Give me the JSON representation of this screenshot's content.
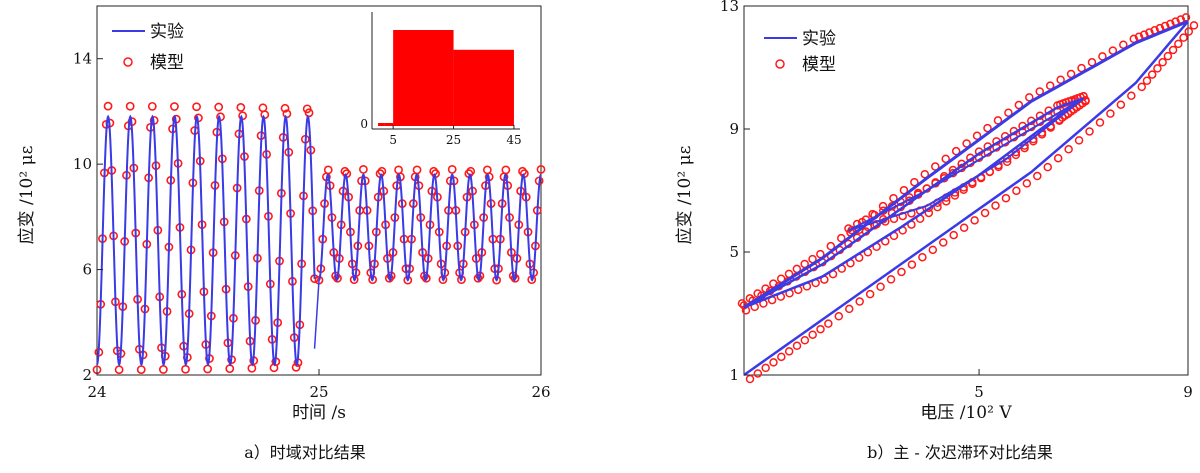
{
  "chart_data": [
    {
      "type": "line",
      "caption": "a）时域对比结果",
      "xlabel": "时间 /s",
      "ylabel": "应变 /10² με",
      "xlim": [
        24,
        26
      ],
      "ylim": [
        2,
        16
      ],
      "xticks": [
        "24",
        "25",
        "26"
      ],
      "yticks": [
        "2",
        "6",
        "10",
        "14"
      ],
      "legend": {
        "placement": "top-left",
        "entries": [
          "实验",
          "模型"
        ]
      },
      "series": [
        {
          "name": "实验",
          "style": "line",
          "color": "#3a3ae6",
          "segments": [
            {
              "x_start": 24.0,
              "x_end": 24.98,
              "frequency_hz": 10,
              "mean": 7.1,
              "amplitude": 4.7
            },
            {
              "x_start": 25.0,
              "x_end": 26.0,
              "frequency_hz": 12.5,
              "mean": 7.6,
              "amplitude": 2.0
            }
          ]
        },
        {
          "name": "模型",
          "style": "circle-markers",
          "color": "#ff1a1a",
          "segments": [
            {
              "x_start": 24.0,
              "x_end": 24.98,
              "frequency_hz": 10,
              "mean": 7.2,
              "amplitude": 5.0
            },
            {
              "x_start": 25.0,
              "x_end": 26.0,
              "frequency_hz": 12.5,
              "mean": 7.7,
              "amplitude": 2.1
            }
          ]
        }
      ],
      "inset": {
        "type": "area",
        "color": "#ff0000",
        "xticks": [
          "5",
          "25",
          "45"
        ],
        "yticks": [
          "0"
        ],
        "xlim": [
          -2,
          47
        ],
        "steps": [
          {
            "x_start": 0,
            "x_end": 2,
            "level": 0
          },
          {
            "x_start": 2,
            "x_end": 5,
            "level": 0.05
          },
          {
            "x_start": 5,
            "x_end": 25,
            "level": 1.0
          },
          {
            "x_start": 25,
            "x_end": 45,
            "level": 0.8
          }
        ],
        "band": [
          {
            "x_start": 5,
            "x_end": 25,
            "low": 0.2
          },
          {
            "x_start": 25,
            "x_end": 45,
            "low": 0.4
          }
        ]
      }
    },
    {
      "type": "line",
      "caption": "b）主 - 次迟滞环对比结果",
      "xlabel": "电压 /10² V",
      "ylabel": "应变 /10² με",
      "xlim": [
        0.5,
        9
      ],
      "ylim": [
        1,
        13
      ],
      "xticks": [
        "5",
        "9"
      ],
      "yticks": [
        "1",
        "5",
        "9",
        "13"
      ],
      "legend": {
        "placement": "top-right",
        "entries": [
          "实验",
          "模型"
        ]
      },
      "major_loop": {
        "v_min": 0.5,
        "v_max": 9,
        "upper_branch": [
          [
            0.5,
            3.2
          ],
          [
            2,
            4.8
          ],
          [
            4,
            7.4
          ],
          [
            6,
            9.9
          ],
          [
            8,
            11.8
          ],
          [
            9,
            12.5
          ]
        ],
        "lower_branch": [
          [
            0.5,
            1.0
          ],
          [
            2,
            2.8
          ],
          [
            4,
            5.2
          ],
          [
            6,
            7.6
          ],
          [
            8,
            10.5
          ],
          [
            9,
            12.5
          ]
        ]
      },
      "minor_loop": {
        "upper_branch": [
          [
            0.5,
            3.2
          ],
          [
            2,
            4.6
          ],
          [
            3.5,
            6.4
          ],
          [
            5,
            8.2
          ],
          [
            6.5,
            9.7
          ],
          [
            7,
            10.0
          ]
        ],
        "lower_branch": [
          [
            0.5,
            3.2
          ],
          [
            2,
            4.2
          ],
          [
            3.5,
            5.8
          ],
          [
            5,
            7.5
          ],
          [
            6.5,
            9.4
          ],
          [
            7,
            10.0
          ]
        ],
        "inner_upper": [
          [
            2.5,
            5.7
          ],
          [
            4,
            7.0
          ],
          [
            5.5,
            8.5
          ],
          [
            7,
            10.0
          ]
        ],
        "inner_lower": [
          [
            2.5,
            5.7
          ],
          [
            4,
            6.5
          ],
          [
            5.5,
            8.0
          ],
          [
            7,
            10.0
          ]
        ]
      },
      "series": [
        {
          "name": "实验",
          "style": "line",
          "color": "#3a3ae6"
        },
        {
          "name": "模型",
          "style": "circle-markers",
          "color": "#ff1a1a"
        }
      ]
    }
  ]
}
